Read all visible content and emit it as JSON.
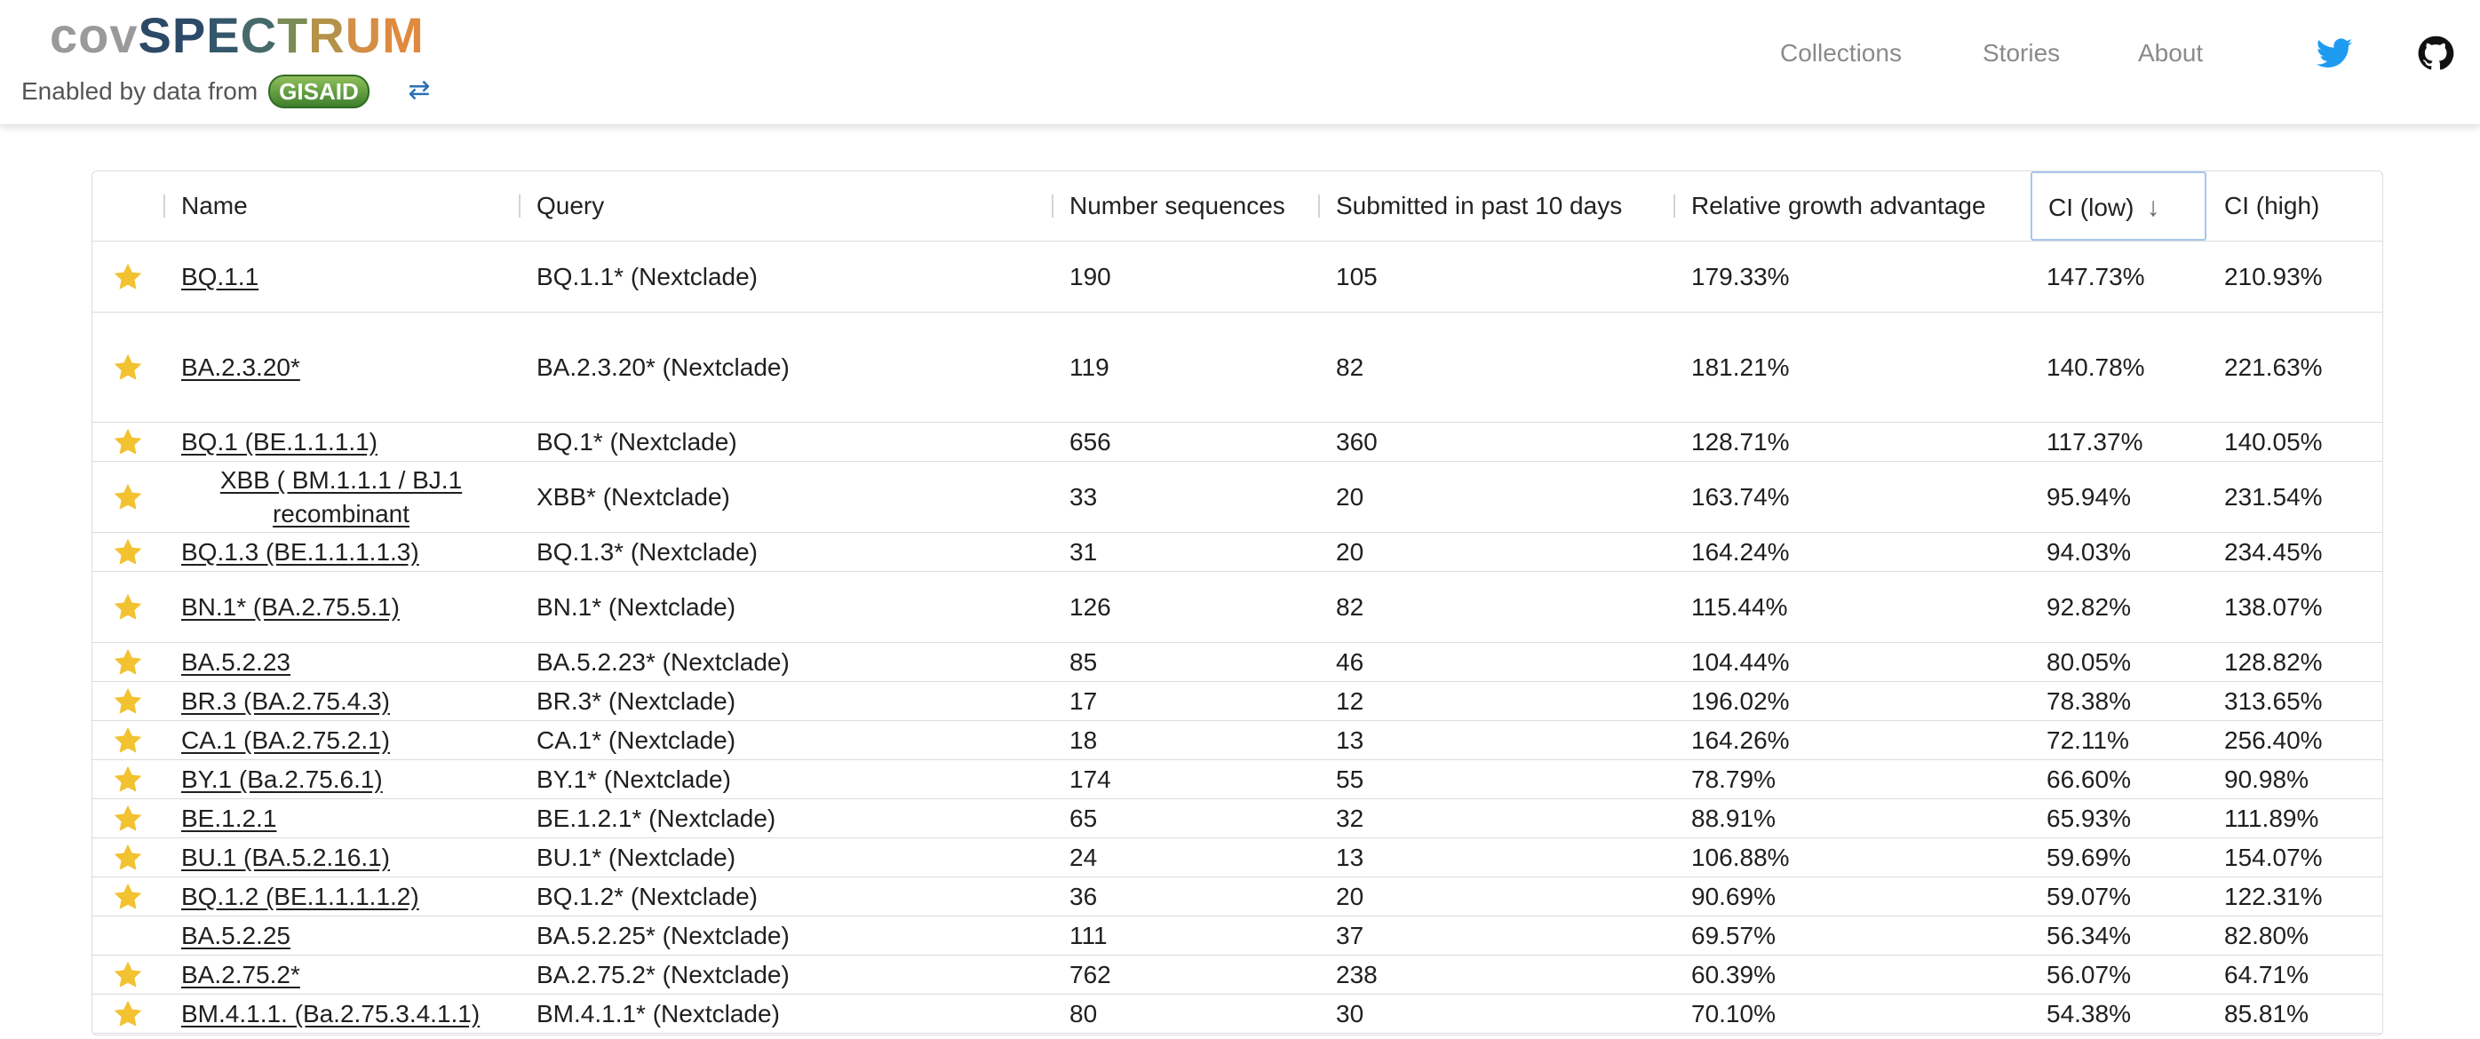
{
  "header": {
    "logo_parts": [
      {
        "text": "cov",
        "color": "#9a9a9a"
      },
      {
        "text": "S",
        "color": "#2c4a67"
      },
      {
        "text": "P",
        "color": "#2c4a67"
      },
      {
        "text": "E",
        "color": "#35576b"
      },
      {
        "text": "C",
        "color": "#466a6a"
      },
      {
        "text": "T",
        "color": "#7b8b55"
      },
      {
        "text": "R",
        "color": "#b5924a"
      },
      {
        "text": "U",
        "color": "#d48e45"
      },
      {
        "text": "M",
        "color": "#e08a3f"
      }
    ],
    "enabled_text": "Enabled by data from",
    "gisaid_badge": "GISAID",
    "nav": {
      "collections": "Collections",
      "stories": "Stories",
      "about": "About"
    },
    "icons": {
      "swap": "swap-arrows-icon",
      "twitter": "twitter-icon",
      "github": "github-icon"
    },
    "colors": {
      "twitter": "#1d9bf0",
      "github": "#111111",
      "star": "#f2c230"
    }
  },
  "table": {
    "columns": [
      "Name",
      "Query",
      "Number sequences",
      "Submitted in past 10 days",
      "Relative growth advantage",
      "CI (low)",
      "CI (high)"
    ],
    "sorted_column": "CI (low)",
    "sort_direction": "descending",
    "rows": [
      {
        "starred": true,
        "name": "BQ.1.1",
        "query": "BQ.1.1* (Nextclade)",
        "sequences": "190",
        "submitted": "105",
        "growth": "179.33%",
        "ci_low": "147.73%",
        "ci_high": "210.93%"
      },
      {
        "starred": true,
        "name": "BA.2.3.20*",
        "query": "BA.2.3.20* (Nextclade)",
        "sequences": "119",
        "submitted": "82",
        "growth": "181.21%",
        "ci_low": "140.78%",
        "ci_high": "221.63%"
      },
      {
        "starred": true,
        "name": "BQ.1 (BE.1.1.1.1)",
        "query": "BQ.1* (Nextclade)",
        "sequences": "656",
        "submitted": "360",
        "growth": "128.71%",
        "ci_low": "117.37%",
        "ci_high": "140.05%"
      },
      {
        "starred": true,
        "name": "XBB ( BM.1.1.1 / BJ.1 recombinant",
        "query": "XBB* (Nextclade)",
        "sequences": "33",
        "submitted": "20",
        "growth": "163.74%",
        "ci_low": "95.94%",
        "ci_high": "231.54%"
      },
      {
        "starred": true,
        "name": "BQ.1.3 (BE.1.1.1.1.3)",
        "query": "BQ.1.3* (Nextclade)",
        "sequences": "31",
        "submitted": "20",
        "growth": "164.24%",
        "ci_low": "94.03%",
        "ci_high": "234.45%"
      },
      {
        "starred": true,
        "name": "BN.1* (BA.2.75.5.1)",
        "query": "BN.1* (Nextclade)",
        "sequences": "126",
        "submitted": "82",
        "growth": "115.44%",
        "ci_low": "92.82%",
        "ci_high": "138.07%"
      },
      {
        "starred": true,
        "name": "BA.5.2.23",
        "query": "BA.5.2.23* (Nextclade)",
        "sequences": "85",
        "submitted": "46",
        "growth": "104.44%",
        "ci_low": "80.05%",
        "ci_high": "128.82%"
      },
      {
        "starred": true,
        "name": "BR.3 (BA.2.75.4.3)",
        "query": "BR.3* (Nextclade)",
        "sequences": "17",
        "submitted": "12",
        "growth": "196.02%",
        "ci_low": "78.38%",
        "ci_high": "313.65%"
      },
      {
        "starred": true,
        "name": "CA.1 (BA.2.75.2.1)",
        "query": "CA.1* (Nextclade)",
        "sequences": "18",
        "submitted": "13",
        "growth": "164.26%",
        "ci_low": "72.11%",
        "ci_high": "256.40%"
      },
      {
        "starred": true,
        "name": "BY.1 (Ba.2.75.6.1)",
        "query": "BY.1* (Nextclade)",
        "sequences": "174",
        "submitted": "55",
        "growth": "78.79%",
        "ci_low": "66.60%",
        "ci_high": "90.98%"
      },
      {
        "starred": true,
        "name": "BE.1.2.1",
        "query": "BE.1.2.1* (Nextclade)",
        "sequences": "65",
        "submitted": "32",
        "growth": "88.91%",
        "ci_low": "65.93%",
        "ci_high": "111.89%"
      },
      {
        "starred": true,
        "name": "BU.1 (BA.5.2.16.1)",
        "query": "BU.1* (Nextclade)",
        "sequences": "24",
        "submitted": "13",
        "growth": "106.88%",
        "ci_low": "59.69%",
        "ci_high": "154.07%"
      },
      {
        "starred": true,
        "name": "BQ.1.2 (BE.1.1.1.1.2)",
        "query": "BQ.1.2* (Nextclade)",
        "sequences": "36",
        "submitted": "20",
        "growth": "90.69%",
        "ci_low": "59.07%",
        "ci_high": "122.31%"
      },
      {
        "starred": false,
        "name": "BA.5.2.25",
        "query": "BA.5.2.25* (Nextclade)",
        "sequences": "111",
        "submitted": "37",
        "growth": "69.57%",
        "ci_low": "56.34%",
        "ci_high": "82.80%"
      },
      {
        "starred": true,
        "name": "BA.2.75.2*",
        "query": "BA.2.75.2* (Nextclade)",
        "sequences": "762",
        "submitted": "238",
        "growth": "60.39%",
        "ci_low": "56.07%",
        "ci_high": "64.71%"
      },
      {
        "starred": true,
        "name": "BM.4.1.1. (Ba.2.75.3.4.1.1)",
        "query": "BM.4.1.1* (Nextclade)",
        "sequences": "80",
        "submitted": "30",
        "growth": "70.10%",
        "ci_low": "54.38%",
        "ci_high": "85.81%"
      }
    ]
  }
}
